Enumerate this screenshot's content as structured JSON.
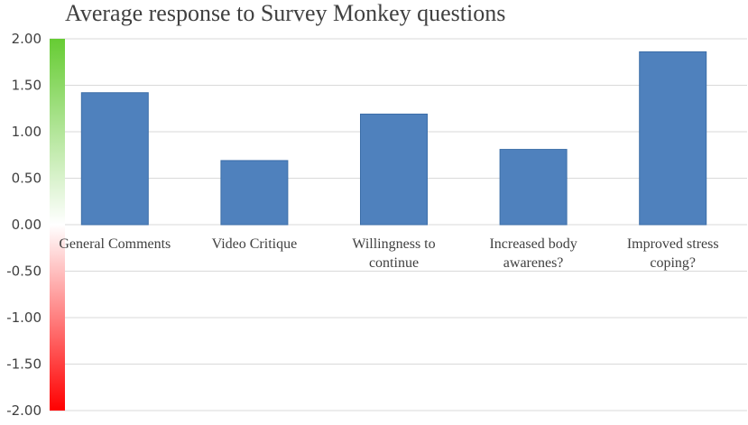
{
  "chart_data": {
    "type": "bar",
    "title": "Average response to Survey Monkey questions",
    "xlabel": "",
    "ylabel": "",
    "ylim": [
      -2.0,
      2.0
    ],
    "yticks": [
      "2.00",
      "1.50",
      "1.00",
      "0.50",
      "0.00",
      "-0.50",
      "-1.00",
      "-1.50",
      "-2.00"
    ],
    "ytick_values": [
      2.0,
      1.5,
      1.0,
      0.5,
      0.0,
      -0.5,
      -1.0,
      -1.5,
      -2.0
    ],
    "categories": [
      [
        "General Comments"
      ],
      [
        "Video Critique"
      ],
      [
        "Willingness to",
        "continue"
      ],
      [
        "Increased body",
        "awarenes?"
      ],
      [
        "Improved stress",
        "coping?"
      ]
    ],
    "values": [
      1.42,
      0.69,
      1.19,
      0.81,
      1.86
    ],
    "grid": true,
    "legend": "none",
    "colors": {
      "bar": "#4f81bd",
      "bar_edge": "#3c6ea8",
      "grid": "#d9d9d9",
      "scale_top": "#66cc33",
      "scale_mid": "#ffffff",
      "scale_bottom": "#ff0000"
    }
  }
}
